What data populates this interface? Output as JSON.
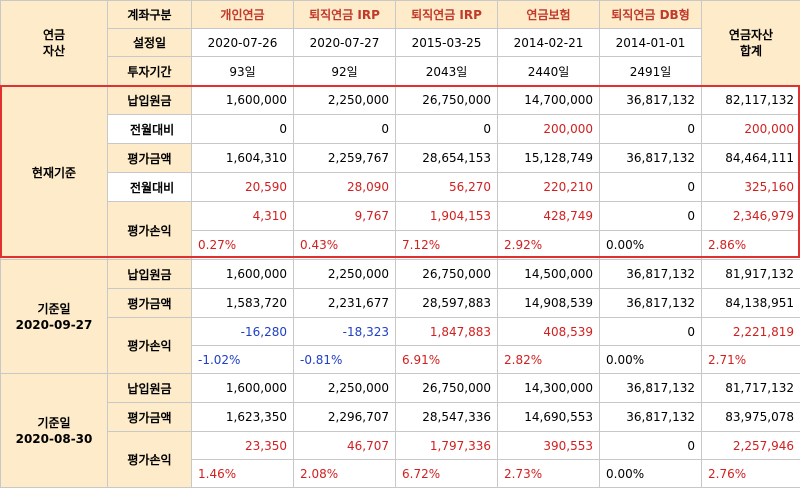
{
  "header": {
    "asset_label": "연금\n자산",
    "account_type_label": "계좌구분",
    "setup_date_label": "설정일",
    "invest_period_label": "투자기간",
    "total_label": "연금자산\n합계",
    "accounts": [
      {
        "name": "개인연금",
        "date": "2020-07-26",
        "period": "93일"
      },
      {
        "name": "퇴직연금 IRP",
        "date": "2020-07-27",
        "period": "92일"
      },
      {
        "name": "퇴직연금 IRP",
        "date": "2015-03-25",
        "period": "2043일"
      },
      {
        "name": "연금보험",
        "date": "2014-02-21",
        "period": "2440일"
      },
      {
        "name": "퇴직연금 DB형",
        "date": "2014-01-01",
        "period": "2491일"
      }
    ]
  },
  "current": {
    "section_label": "현재기준",
    "principal_label": "납입원금",
    "principal": [
      "1,600,000",
      "2,250,000",
      "26,750,000",
      "14,700,000",
      "36,817,132",
      "82,117,132"
    ],
    "principal_change_label": "전월대비",
    "principal_change": [
      "0",
      "0",
      "0",
      "200,000",
      "0",
      "200,000"
    ],
    "valuation_label": "평가금액",
    "valuation": [
      "1,604,310",
      "2,259,767",
      "28,654,153",
      "15,128,749",
      "36,817,132",
      "84,464,111"
    ],
    "valuation_change_label": "전월대비",
    "valuation_change": [
      "20,590",
      "28,090",
      "56,270",
      "220,210",
      "0",
      "325,160"
    ],
    "pnl_label": "평가손익",
    "pnl": [
      "4,310",
      "9,767",
      "1,904,153",
      "428,749",
      "0",
      "2,346,979"
    ],
    "pnl_pct": [
      "0.27%",
      "0.43%",
      "7.12%",
      "2.92%",
      "0.00%",
      "2.86%"
    ]
  },
  "sep27": {
    "section_label": "기준일\n2020-09-27",
    "principal_label": "납입원금",
    "principal": [
      "1,600,000",
      "2,250,000",
      "26,750,000",
      "14,500,000",
      "36,817,132",
      "81,917,132"
    ],
    "valuation_label": "평가금액",
    "valuation": [
      "1,583,720",
      "2,231,677",
      "28,597,883",
      "14,908,539",
      "36,817,132",
      "84,138,951"
    ],
    "pnl_label": "평가손익",
    "pnl": [
      "-16,280",
      "-18,323",
      "1,847,883",
      "408,539",
      "0",
      "2,221,819"
    ],
    "pnl_pct": [
      "-1.02%",
      "-0.81%",
      "6.91%",
      "2.82%",
      "0.00%",
      "2.71%"
    ]
  },
  "aug30": {
    "section_label": "기준일\n2020-08-30",
    "principal_label": "납입원금",
    "principal": [
      "1,600,000",
      "2,250,000",
      "26,750,000",
      "14,300,000",
      "36,817,132",
      "81,717,132"
    ],
    "valuation_label": "평가금액",
    "valuation": [
      "1,623,350",
      "2,296,707",
      "28,547,336",
      "14,690,553",
      "36,817,132",
      "83,975,078"
    ],
    "pnl_label": "평가손익",
    "pnl": [
      "23,350",
      "46,707",
      "1,797,336",
      "390,553",
      "0",
      "2,257,946"
    ],
    "pnl_pct": [
      "1.46%",
      "2.08%",
      "6.72%",
      "2.73%",
      "0.00%",
      "2.76%"
    ]
  },
  "colors": {
    "header_bg": "#fdebc9",
    "positive": "#d21f1f",
    "negative": "#1f3fc4",
    "highlight_border": "#e0302f"
  }
}
